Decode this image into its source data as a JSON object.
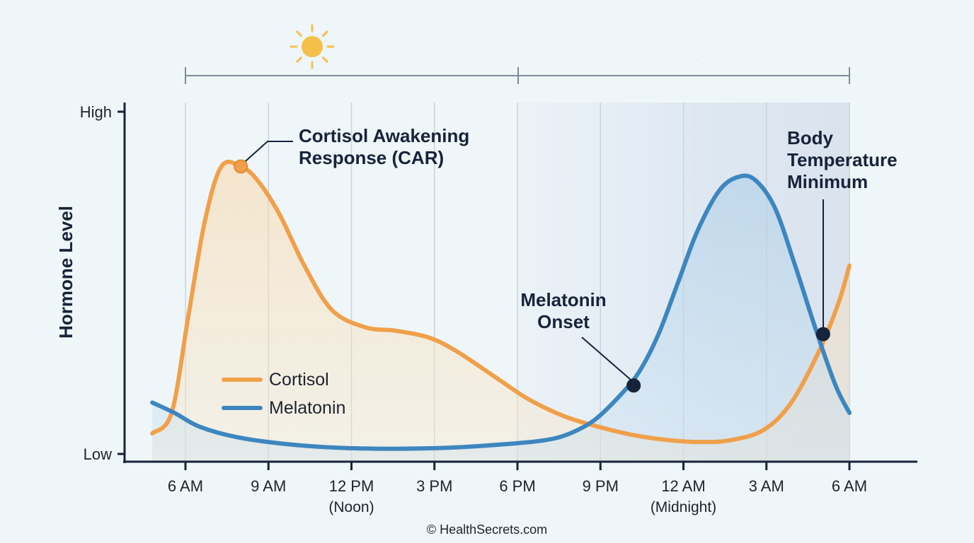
{
  "chart_data": {
    "type": "line",
    "ylabel": "Hormone Level",
    "y_tick_labels": {
      "high": "High",
      "low": "Low"
    },
    "ylim": [
      0,
      100
    ],
    "xlim": [
      4.75,
      30
    ],
    "x_ticks": [
      {
        "hour": 6,
        "label": "6 AM",
        "sublabel": ""
      },
      {
        "hour": 9,
        "label": "9 AM",
        "sublabel": ""
      },
      {
        "hour": 12,
        "label": "12 PM",
        "sublabel": "(Noon)"
      },
      {
        "hour": 15,
        "label": "3 PM",
        "sublabel": ""
      },
      {
        "hour": 18,
        "label": "6 PM",
        "sublabel": ""
      },
      {
        "hour": 21,
        "label": "9 PM",
        "sublabel": ""
      },
      {
        "hour": 24,
        "label": "12 AM",
        "sublabel": "(Midnight)"
      },
      {
        "hour": 27,
        "label": "3 AM",
        "sublabel": ""
      },
      {
        "hour": 30,
        "label": "6 AM",
        "sublabel": ""
      }
    ],
    "grid": "vertical",
    "day_period": {
      "from": 6,
      "to": 18,
      "icon": "sun-icon"
    },
    "night_period": {
      "from": 18,
      "to": 30,
      "icon": "moon-icon"
    },
    "series": [
      {
        "name": "Cortisol",
        "color": "#f0a04a",
        "fill": true,
        "points": [
          [
            4.8,
            6
          ],
          [
            5.5,
            12
          ],
          [
            6.1,
            40
          ],
          [
            6.7,
            68
          ],
          [
            7.3,
            84
          ],
          [
            8.0,
            84
          ],
          [
            8.6,
            80
          ],
          [
            9.4,
            70
          ],
          [
            10.3,
            55
          ],
          [
            11.3,
            42
          ],
          [
            12.5,
            37
          ],
          [
            13.6,
            36
          ],
          [
            14.8,
            34
          ],
          [
            15.8,
            30
          ],
          [
            17.1,
            23
          ],
          [
            18.4,
            16
          ],
          [
            19.7,
            11
          ],
          [
            20.9,
            8
          ],
          [
            22.2,
            5.5
          ],
          [
            23.5,
            4
          ],
          [
            24.6,
            3.5
          ],
          [
            25.7,
            4
          ],
          [
            26.9,
            7
          ],
          [
            27.9,
            15
          ],
          [
            28.9,
            30
          ],
          [
            29.6,
            44
          ],
          [
            30.0,
            55
          ]
        ]
      },
      {
        "name": "Melatonin",
        "color": "#3d86bf",
        "fill": true,
        "points": [
          [
            4.8,
            15
          ],
          [
            5.6,
            12
          ],
          [
            6.5,
            8
          ],
          [
            7.8,
            5
          ],
          [
            9.5,
            3
          ],
          [
            11.5,
            1.8
          ],
          [
            13.5,
            1.5
          ],
          [
            15.5,
            1.8
          ],
          [
            17.5,
            2.8
          ],
          [
            19.0,
            4
          ],
          [
            19.9,
            6
          ],
          [
            20.8,
            10
          ],
          [
            21.7,
            17
          ],
          [
            22.4,
            24
          ],
          [
            23.1,
            35
          ],
          [
            23.8,
            50
          ],
          [
            24.5,
            65
          ],
          [
            25.3,
            77
          ],
          [
            26.0,
            81
          ],
          [
            26.6,
            80
          ],
          [
            27.3,
            72
          ],
          [
            28.0,
            56
          ],
          [
            28.8,
            36
          ],
          [
            29.5,
            20
          ],
          [
            30.0,
            12
          ]
        ]
      }
    ],
    "annotations": [
      {
        "id": "car",
        "lines": [
          "Cortisol Awakening",
          "Response (CAR)"
        ],
        "point": [
          8.0,
          84
        ]
      },
      {
        "id": "melatonin-onset",
        "lines": [
          "Melatonin",
          "Onset"
        ],
        "point": [
          22.2,
          20
        ]
      },
      {
        "id": "body-temp-min",
        "lines": [
          "Body",
          "Temperature",
          "Minimum"
        ],
        "point": [
          29.05,
          35
        ]
      }
    ],
    "legend": {
      "placement": "center-left",
      "entries": [
        "Cortisol",
        "Melatonin"
      ]
    }
  },
  "footer": {
    "copyright": "© HealthSecrets.com"
  },
  "colors": {
    "axis": "#16233a",
    "grid": "#c9d3da",
    "bracket": "#7e8c99",
    "night_band": "#e0e9f2",
    "sun": "#f5c04a",
    "moon": "#4e6d96",
    "marker": "#16233a"
  }
}
